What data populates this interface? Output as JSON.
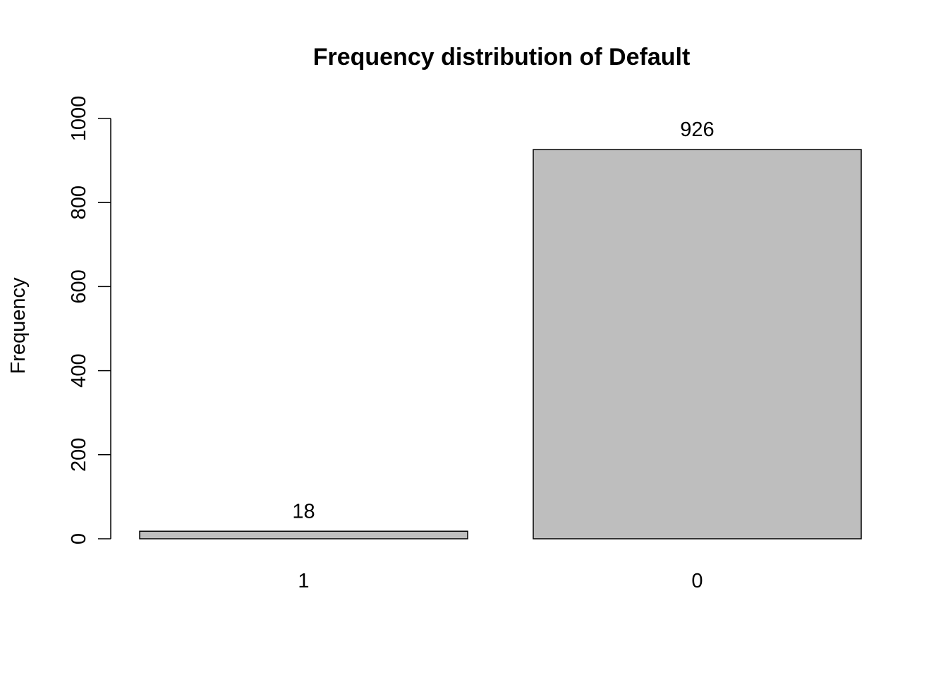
{
  "chart_data": {
    "type": "bar",
    "title": "Frequency distribution of Default",
    "xlabel": "",
    "ylabel": "Frequency",
    "categories": [
      "1",
      "0"
    ],
    "values": [
      18,
      926
    ],
    "data_labels": [
      "18",
      "926"
    ],
    "ylim": [
      0,
      1000
    ],
    "yticks": [
      0,
      200,
      400,
      600,
      800,
      1000
    ],
    "ytick_labels": [
      "0",
      "200",
      "400",
      "600",
      "800",
      "1000"
    ],
    "bar_color": "#bebebe",
    "grid": false,
    "legend": "none"
  }
}
